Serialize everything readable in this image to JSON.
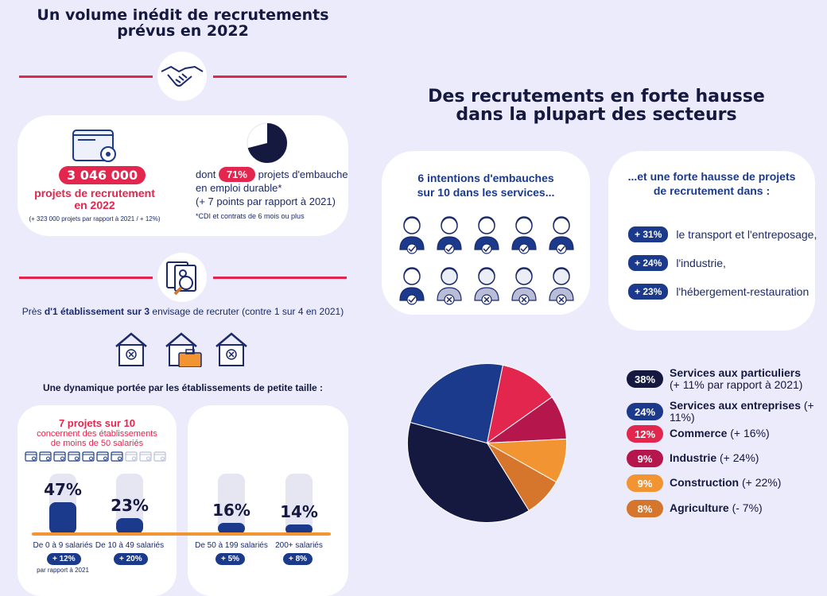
{
  "left": {
    "title": "Un volume inédit de recrutements\nprévus en 2022",
    "big_number": "3 046 000",
    "projects_label": "projets de recrutement\nen 2022",
    "projects_note": "(+ 323 000 projets par rapport à 2021 / + 12%)",
    "durable_prefix": "dont",
    "durable_pct": "71%",
    "durable_text": "projets d'embauche",
    "durable_text2": "en emploi durable*",
    "durable_note": "(+ 7 points par rapport à 2021)",
    "durable_footnote": "*CDI et contrats de 6 mois ou plus",
    "durable_fraction": 0.71,
    "establishments_pre": "Près",
    "establishments_bold": "d'1 établissement sur 3",
    "establishments_post": "envisage de recruter (contre 1 sur 4 en 2021)",
    "small_size_title": "Une dynamique portée par les établissements de petite taille :",
    "seven_title": "7 projets sur 10",
    "seven_sub": "concernent des établissements\nde moins de 50 salariés",
    "bars": [
      {
        "pct_label": "47%",
        "value": 47,
        "label": "De 0 à 9 salariés",
        "change": "+ 12%",
        "note": "par rapport à 2021"
      },
      {
        "pct_label": "23%",
        "value": 23,
        "label": "De 10 à 49 salariés",
        "change": "+ 20%",
        "note": ""
      },
      {
        "pct_label": "16%",
        "value": 16,
        "label": "De 50 à 199 salariés",
        "change": "+ 5%",
        "note": ""
      },
      {
        "pct_label": "14%",
        "value": 14,
        "label": "200+ salariés",
        "change": "+ 8%",
        "note": ""
      }
    ]
  },
  "right": {
    "title": "Des recrutements en forte hausse\ndans la plupart des secteurs",
    "services_title": "6 intentions d'embauches\nsur 10 dans les services...",
    "people_total": 10,
    "people_highlighted": 6,
    "sectors_title": "...et une forte hausse de projets\nde recrutement dans :",
    "sectors": [
      {
        "pct": "+ 31%",
        "label": "le transport et l'entreposage,"
      },
      {
        "pct": "+ 24%",
        "label": "l'industrie,"
      },
      {
        "pct": "+ 23%",
        "label": "l'hébergement-restauration"
      }
    ]
  },
  "chart_data": {
    "type": "pie",
    "slices": [
      {
        "label": "Services aux particuliers",
        "value": 38,
        "pct_label": "38%",
        "detail": "(+ 11% par rapport à 2021)",
        "color": "#15183f"
      },
      {
        "label": "Services aux entreprises",
        "value": 24,
        "pct_label": "24%",
        "detail": "(+ 11%)",
        "color": "#1b3a8c"
      },
      {
        "label": "Commerce",
        "value": 12,
        "pct_label": "12%",
        "detail": "(+ 16%)",
        "color": "#e2264e"
      },
      {
        "label": "Industrie",
        "value": 9,
        "pct_label": "9%",
        "detail": "(+ 24%)",
        "color": "#b5174d"
      },
      {
        "label": "Construction",
        "value": 9,
        "pct_label": "9%",
        "detail": "(+ 22%)",
        "color": "#f29432"
      },
      {
        "label": "Agriculture",
        "value": 8,
        "pct_label": "8%",
        "detail": "(- 7%)",
        "color": "#d6762c"
      }
    ]
  }
}
